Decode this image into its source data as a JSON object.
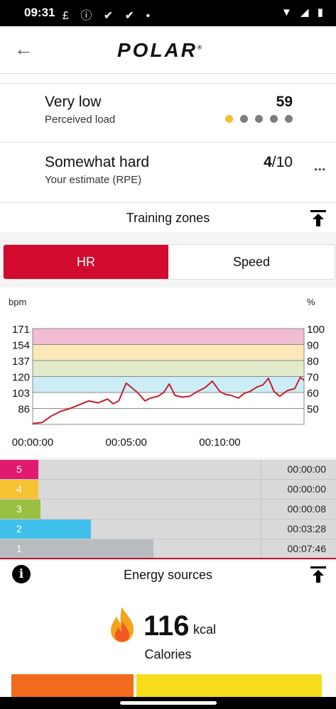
{
  "status_bar": {
    "time": "09:31",
    "notif_icons": "£ ⓘ ✔ ✔ •",
    "right_icons": "▼ ◢ ▮"
  },
  "app": {
    "logo": "POLAR",
    "registered": "®"
  },
  "perceived_load": {
    "title": "Very low",
    "subtitle": "Perceived load",
    "value": "59",
    "level": 1,
    "max_level": 5
  },
  "rpe": {
    "title": "Somewhat hard",
    "subtitle": "Your estimate (RPE)",
    "value": "4",
    "denominator": "/10",
    "more": "•••"
  },
  "training_zones": {
    "title": "Training zones",
    "tabs": [
      {
        "label": "HR",
        "selected": true
      },
      {
        "label": "Speed",
        "selected": false
      }
    ],
    "zones": [
      {
        "num": "5",
        "color": "#e01a6e",
        "time": "00:00:00",
        "fraction": 0.0
      },
      {
        "num": "4",
        "color": "#f7c233",
        "time": "00:00:00",
        "fraction": 0.002
      },
      {
        "num": "3",
        "color": "#99c042",
        "time": "00:00:08",
        "fraction": 0.012
      },
      {
        "num": "2",
        "color": "#3fc0ea",
        "time": "00:03:28",
        "fraction": 0.31
      },
      {
        "num": "1",
        "color": "#b9bcbf",
        "time": "00:07:46",
        "fraction": 0.675
      }
    ]
  },
  "chart_data": {
    "type": "line",
    "ylabel_left": "bpm",
    "ylabel_right": "%",
    "y_ticks_left": [
      "171",
      "154",
      "137",
      "120",
      "103",
      "86"
    ],
    "y_ticks_right": [
      "100",
      "90",
      "80",
      "70",
      "60",
      "50"
    ],
    "x_ticks": [
      "00:00:00",
      "00:05:00",
      "00:10:00"
    ],
    "ylim": [
      69,
      171
    ],
    "xlim_minutes": [
      0,
      14.5
    ],
    "zone_bands": [
      {
        "from": 154,
        "to": 171,
        "color": "#f2bcd2"
      },
      {
        "from": 137,
        "to": 154,
        "color": "#fbe8b8"
      },
      {
        "from": 120,
        "to": 137,
        "color": "#e2ebc9"
      },
      {
        "from": 103,
        "to": 120,
        "color": "#cdedf6"
      }
    ],
    "series": [
      {
        "color": "#c41e2e",
        "x": [
          0,
          0.5,
          1.0,
          1.5,
          2.0,
          2.5,
          3.0,
          3.5,
          4.0,
          4.3,
          4.6,
          5.0,
          5.3,
          5.6,
          6.0,
          6.3,
          6.7,
          7.0,
          7.3,
          7.6,
          8.0,
          8.4,
          8.8,
          9.2,
          9.6,
          10.0,
          10.3,
          10.6,
          11.0,
          11.3,
          11.6,
          12.0,
          12.3,
          12.6,
          12.9,
          13.2,
          13.6,
          14.0,
          14.3,
          14.5
        ],
        "y": [
          70,
          71,
          78,
          83,
          86,
          90,
          94,
          92,
          96,
          91,
          94,
          113,
          108,
          103,
          94,
          97,
          99,
          103,
          112,
          100,
          98,
          99,
          104,
          108,
          115,
          104,
          101,
          100,
          97,
          102,
          104,
          109,
          111,
          118,
          104,
          99,
          105,
          107,
          119,
          116
        ]
      }
    ]
  },
  "energy": {
    "title": "Energy sources",
    "info": "i"
  },
  "calories": {
    "value": "116",
    "unit": "kcal",
    "label": "Calories"
  },
  "energy_sources": [
    {
      "color": "#f26a1b",
      "fraction": 0.4
    },
    {
      "color": "#f6dc1a",
      "fraction": 0.6
    }
  ]
}
